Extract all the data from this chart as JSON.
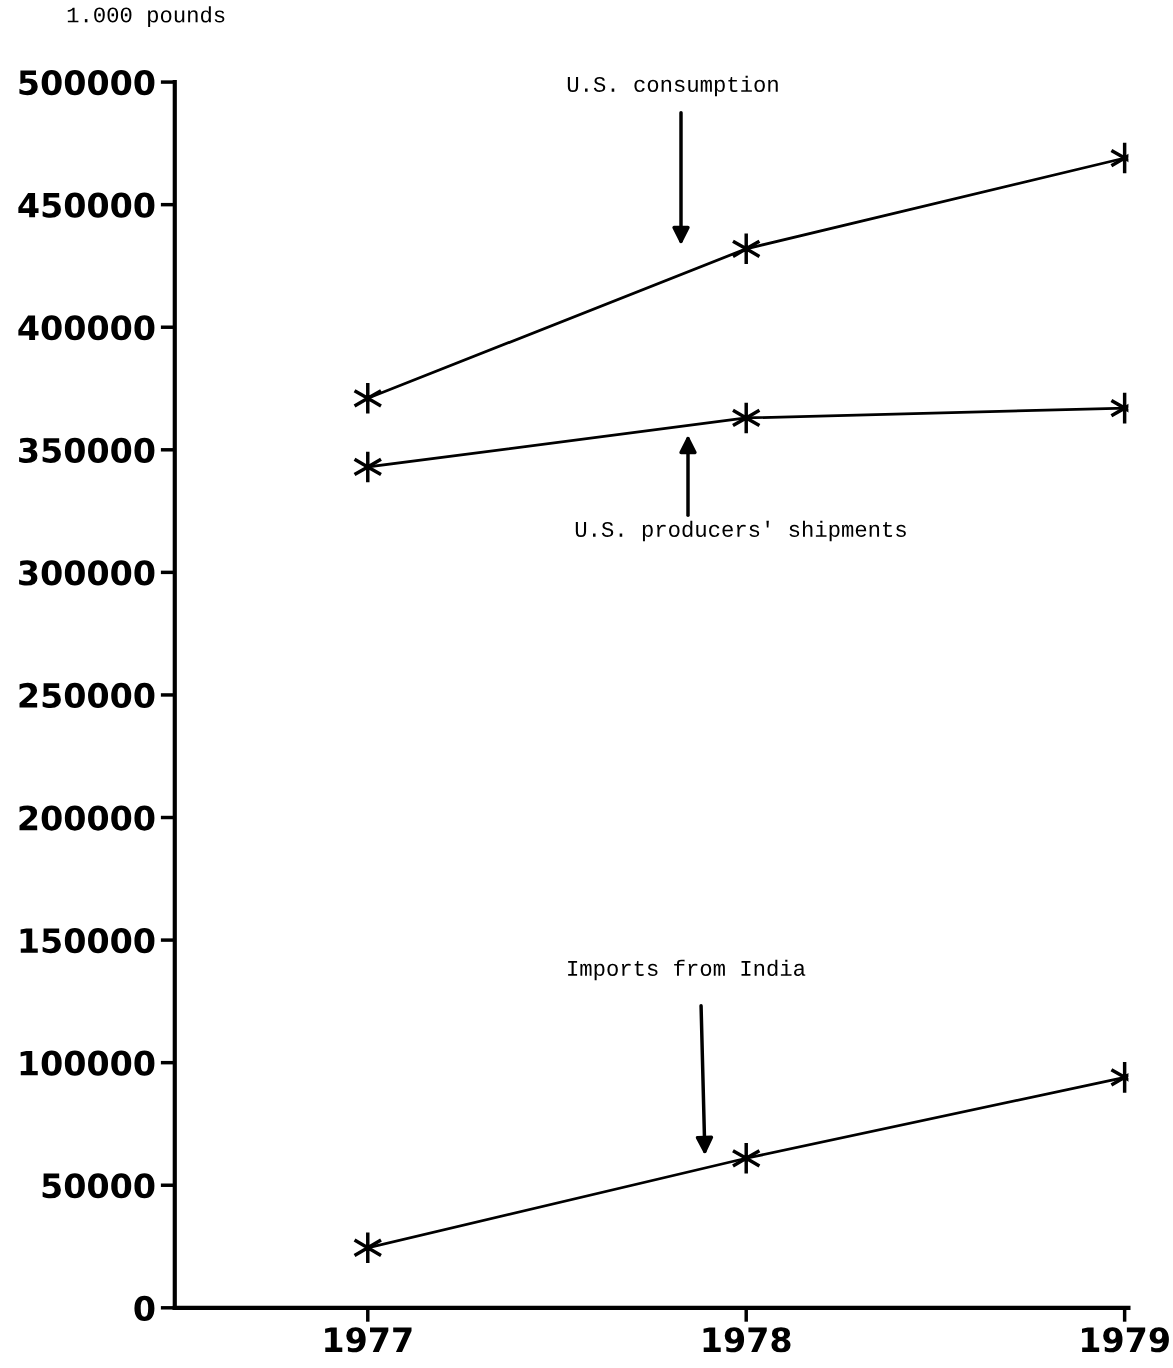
{
  "chart_data": {
    "type": "line",
    "ylabel": "1.000 pounds",
    "x": [
      1977,
      1978,
      1979
    ],
    "xlim": [
      1976.49,
      1979.01
    ],
    "xticks": [
      1977,
      1978,
      1979
    ],
    "ylim": [
      0,
      500000
    ],
    "yticks": [
      0,
      50000,
      100000,
      150000,
      200000,
      250000,
      300000,
      350000,
      400000,
      450000,
      500000
    ],
    "grid": false,
    "legend": false,
    "line_style": "solid",
    "series": [
      {
        "color": "#000000",
        "marker": "cross",
        "values": [
          371000,
          432000,
          469000
        ]
      },
      {
        "color": "#000000",
        "marker": "cross",
        "values": [
          343000,
          363000,
          367000
        ]
      },
      {
        "color": "#000000",
        "marker": "cross",
        "values": [
          24500,
          61000,
          94000
        ]
      }
    ],
    "annotations": [
      "U.S. consumption",
      "U.S. producers' shipments",
      "Imports from India"
    ]
  }
}
